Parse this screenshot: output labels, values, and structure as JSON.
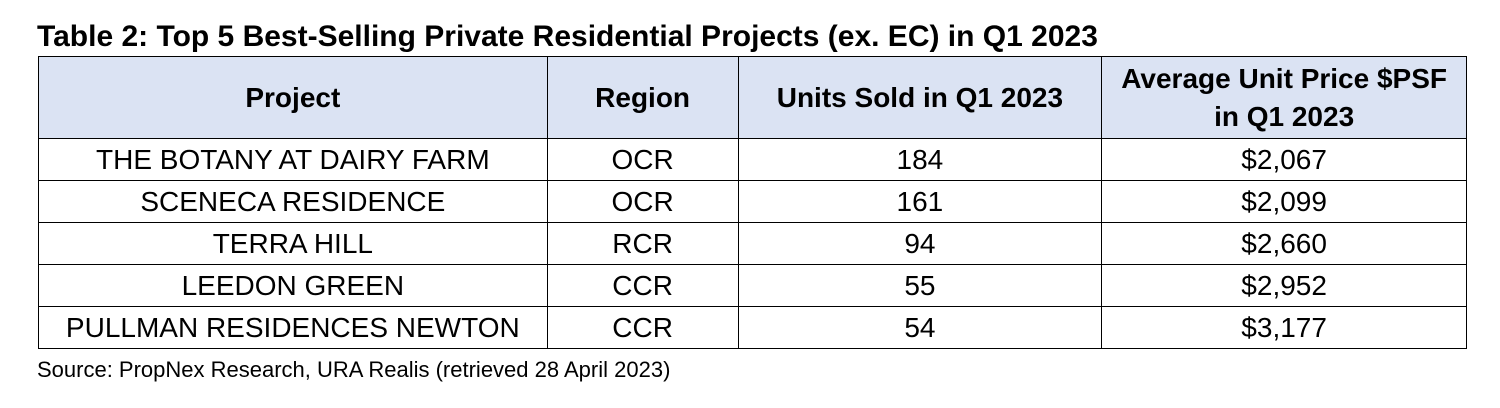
{
  "title": "Table 2: Top 5 Best-Selling Private Residential Projects (ex. EC) in Q1 2023",
  "table": {
    "headers": {
      "project": "Project",
      "region": "Region",
      "units": "Units Sold in Q1 2023",
      "price_line1": "Average Unit Price $PSF",
      "price_line2": "in Q1 2023"
    },
    "rows": [
      {
        "project": "THE BOTANY AT DAIRY FARM",
        "region": "OCR",
        "units": "184",
        "price": "$2,067"
      },
      {
        "project": "SCENECA RESIDENCE",
        "region": "OCR",
        "units": "161",
        "price": "$2,099"
      },
      {
        "project": "TERRA HILL",
        "region": "RCR",
        "units": "94",
        "price": "$2,660"
      },
      {
        "project": "LEEDON GREEN",
        "region": "CCR",
        "units": "55",
        "price": "$2,952"
      },
      {
        "project": "PULLMAN RESIDENCES NEWTON",
        "region": "CCR",
        "units": "54",
        "price": "$3,177"
      }
    ]
  },
  "source": "Source: PropNex Research, URA Realis (retrieved 28 April 2023)",
  "colors": {
    "header_background": "#dbe3f3",
    "border": "#000000"
  }
}
